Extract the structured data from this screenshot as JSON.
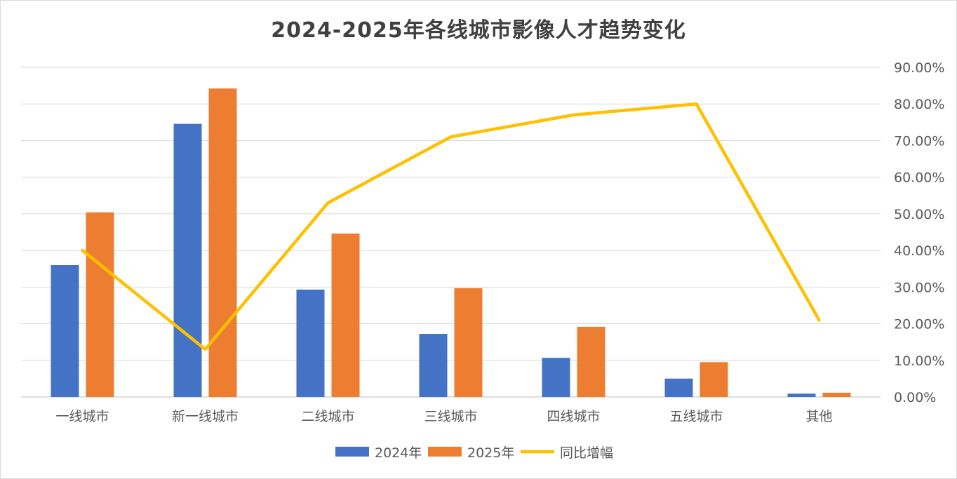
{
  "chart_data": {
    "type": "bar",
    "title": "2024-2025年各线城市影像人才趋势变化",
    "categories": [
      "一线城市",
      "新一线城市",
      "二线城市",
      "三线城市",
      "四线城市",
      "五线城市",
      "其他"
    ],
    "series": [
      {
        "name": "2024年",
        "type": "bar",
        "axis": "left",
        "color": "#4472c4",
        "values": [
          0.28,
          0.58,
          0.228,
          0.134,
          0.083,
          0.039,
          0.007
        ]
      },
      {
        "name": "2025年",
        "type": "bar",
        "axis": "left",
        "color": "#ed7d31",
        "values": [
          0.392,
          0.655,
          0.347,
          0.231,
          0.149,
          0.074,
          0.009
        ]
      },
      {
        "name": "同比增幅",
        "type": "line",
        "axis": "right",
        "color": "#ffc000",
        "values": [
          0.4,
          0.13,
          0.53,
          0.71,
          0.77,
          0.8,
          0.21
        ]
      }
    ],
    "y_left": {
      "min": 0,
      "max": 0.7,
      "step": 0.1,
      "tick_labels_shown": false
    },
    "y_right": {
      "min": 0,
      "max": 0.9,
      "step": 0.1,
      "format": "percent2",
      "tick_labels": [
        "0.00%",
        "10.00%",
        "20.00%",
        "30.00%",
        "40.00%",
        "50.00%",
        "60.00%",
        "70.00%",
        "80.00%",
        "90.00%"
      ]
    },
    "grid": true,
    "legend_position": "bottom"
  }
}
